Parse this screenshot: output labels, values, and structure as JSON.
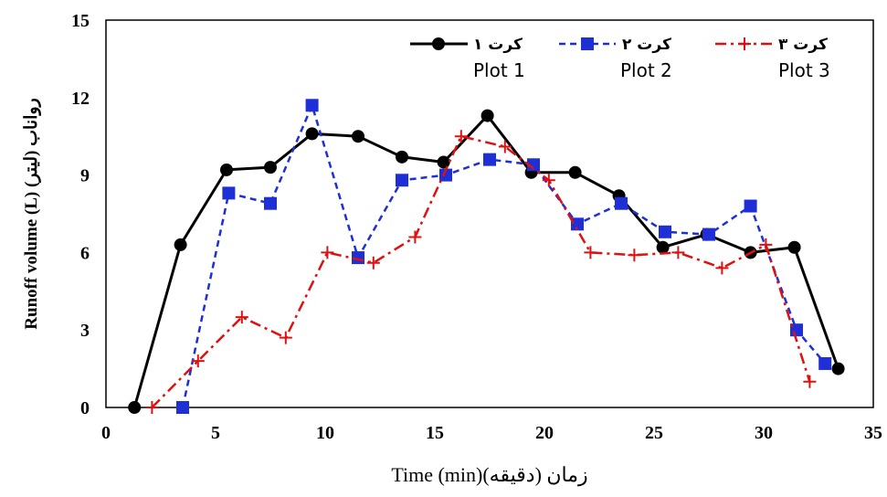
{
  "chart_data": {
    "type": "line",
    "xlabel": "Time (min)(دقیقه) زمان",
    "ylabel": "Runoff volume (L) (لیتر) رواناب",
    "xlim": [
      0,
      35
    ],
    "ylim": [
      0,
      15
    ],
    "xticks": [
      "0",
      "5",
      "10",
      "15",
      "20",
      "25",
      "30",
      "35"
    ],
    "yticks": [
      "0",
      "3",
      "6",
      "9",
      "12",
      "15"
    ],
    "grid": false,
    "legend_position": "top-right",
    "series": [
      {
        "name_fa": "کرت ۱",
        "name_en": "Plot 1",
        "color": "#000000",
        "marker": "circle",
        "dash": "solid",
        "points": [
          [
            1.3,
            0
          ],
          [
            3.4,
            6.3
          ],
          [
            5.5,
            9.2
          ],
          [
            7.5,
            9.3
          ],
          [
            9.4,
            10.6
          ],
          [
            11.5,
            10.5
          ],
          [
            13.5,
            9.7
          ],
          [
            15.4,
            9.5
          ],
          [
            17.4,
            11.3
          ],
          [
            19.4,
            9.1
          ],
          [
            21.4,
            9.1
          ],
          [
            23.4,
            8.2
          ],
          [
            25.4,
            6.2
          ],
          [
            27.4,
            6.7
          ],
          [
            29.4,
            6.0
          ],
          [
            31.4,
            6.2
          ],
          [
            33.4,
            1.5
          ]
        ]
      },
      {
        "name_fa": "کرت ۲",
        "name_en": "Plot 2",
        "color": "#1f2fd6",
        "marker": "square",
        "dash": "dashed",
        "points": [
          [
            3.5,
            0
          ],
          [
            5.6,
            8.3
          ],
          [
            7.5,
            7.9
          ],
          [
            9.4,
            11.7
          ],
          [
            11.5,
            5.8
          ],
          [
            13.5,
            8.8
          ],
          [
            15.5,
            9.0
          ],
          [
            17.5,
            9.6
          ],
          [
            19.5,
            9.4
          ],
          [
            21.5,
            7.1
          ],
          [
            23.5,
            7.9
          ],
          [
            25.5,
            6.8
          ],
          [
            27.5,
            6.7
          ],
          [
            29.4,
            7.8
          ],
          [
            31.5,
            3.0
          ],
          [
            32.8,
            1.7
          ]
        ]
      },
      {
        "name_fa": "کرت ۳",
        "name_en": "Plot 3",
        "color": "#e01010",
        "marker": "plus",
        "dash": "dashdot",
        "points": [
          [
            2.1,
            0
          ],
          [
            4.2,
            1.8
          ],
          [
            6.2,
            3.5
          ],
          [
            8.2,
            2.7
          ],
          [
            10.1,
            6.0
          ],
          [
            12.2,
            5.6
          ],
          [
            14.1,
            6.6
          ],
          [
            16.2,
            10.5
          ],
          [
            18.2,
            10.1
          ],
          [
            20.2,
            8.8
          ],
          [
            22.1,
            6.0
          ],
          [
            24.1,
            5.9
          ],
          [
            26.1,
            6.0
          ],
          [
            28.1,
            5.4
          ],
          [
            30.1,
            6.3
          ],
          [
            32.1,
            1.0
          ]
        ]
      }
    ]
  }
}
